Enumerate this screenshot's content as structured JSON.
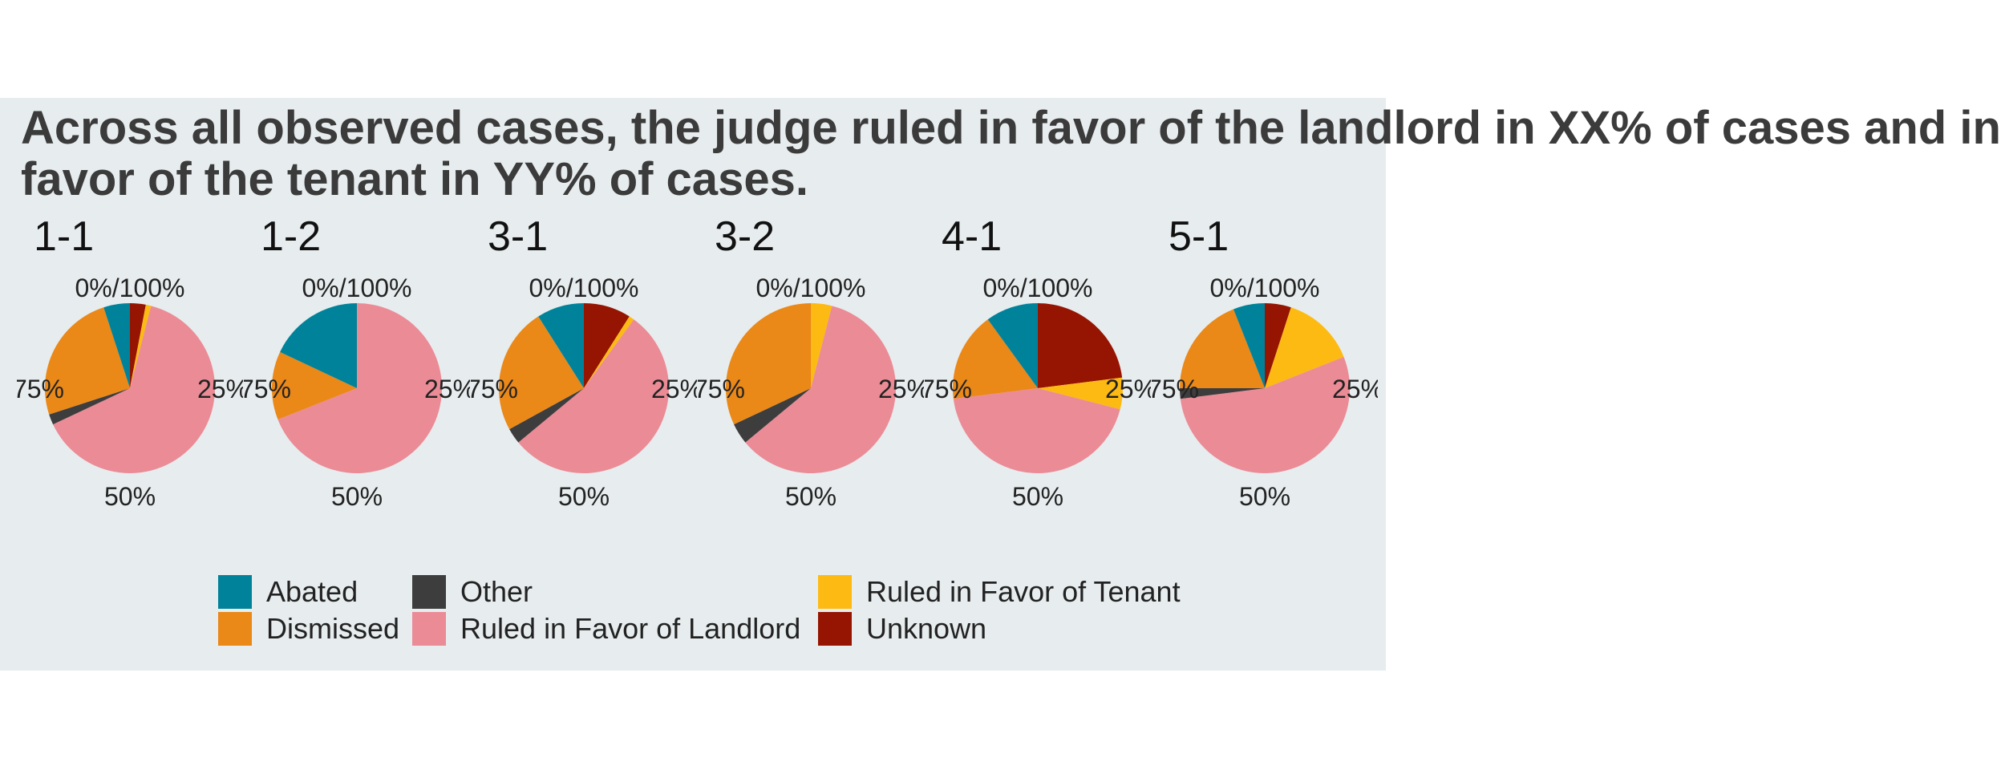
{
  "title_lines": [
    "Across all observed cases, the judge ruled in favor of the landlord in XX% of cases and in",
    "favor of the tenant in YY% of cases."
  ],
  "colors": {
    "Abated": "#00839a",
    "Other": "#3d3d3d",
    "Ruled in Favor of Tenant": "#fdba12",
    "Dismissed": "#ea8818",
    "Ruled in Favor of Landlord": "#eb8b96",
    "Unknown": "#961502",
    "panel_background": "#e7ecee"
  },
  "legend": {
    "items": [
      "Abated",
      "Dismissed",
      "Other",
      "Ruled in Favor of Landlord",
      "Ruled in Favor of Tenant",
      "Unknown"
    ]
  },
  "chart_data": [
    {
      "type": "pie",
      "title": "1-1",
      "tick_labels": [
        "0%/100%",
        "25%",
        "50%",
        "75%"
      ],
      "categories": [
        "Unknown",
        "Ruled in Favor of Tenant",
        "Ruled in Favor of Landlord",
        "Other",
        "Dismissed",
        "Abated"
      ],
      "values": [
        0.03,
        0.01,
        0.64,
        0.02,
        0.25,
        0.05
      ]
    },
    {
      "type": "pie",
      "title": "1-2",
      "tick_labels": [
        "0%/100%",
        "25%",
        "50%",
        "75%"
      ],
      "categories": [
        "Unknown",
        "Ruled in Favor of Tenant",
        "Ruled in Favor of Landlord",
        "Other",
        "Dismissed",
        "Abated"
      ],
      "values": [
        0.0,
        0.0,
        0.69,
        0.0,
        0.13,
        0.18
      ]
    },
    {
      "type": "pie",
      "title": "3-1",
      "tick_labels": [
        "0%/100%",
        "25%",
        "50%",
        "75%"
      ],
      "categories": [
        "Unknown",
        "Ruled in Favor of Tenant",
        "Ruled in Favor of Landlord",
        "Other",
        "Dismissed",
        "Abated"
      ],
      "values": [
        0.09,
        0.01,
        0.54,
        0.03,
        0.24,
        0.09
      ]
    },
    {
      "type": "pie",
      "title": "3-2",
      "tick_labels": [
        "0%/100%",
        "25%",
        "50%",
        "75%"
      ],
      "categories": [
        "Unknown",
        "Ruled in Favor of Tenant",
        "Ruled in Favor of Landlord",
        "Other",
        "Dismissed",
        "Abated"
      ],
      "values": [
        0.0,
        0.04,
        0.6,
        0.04,
        0.32,
        0.0
      ]
    },
    {
      "type": "pie",
      "title": "4-1",
      "tick_labels": [
        "0%/100%",
        "25%",
        "50%",
        "75%"
      ],
      "categories": [
        "Unknown",
        "Ruled in Favor of Tenant",
        "Ruled in Favor of Landlord",
        "Other",
        "Dismissed",
        "Abated"
      ],
      "values": [
        0.23,
        0.06,
        0.44,
        0.0,
        0.17,
        0.1
      ]
    },
    {
      "type": "pie",
      "title": "5-1",
      "tick_labels": [
        "0%/100%",
        "25%",
        "50%",
        "75%"
      ],
      "categories": [
        "Unknown",
        "Ruled in Favor of Tenant",
        "Ruled in Favor of Landlord",
        "Other",
        "Dismissed",
        "Abated"
      ],
      "values": [
        0.05,
        0.14,
        0.54,
        0.02,
        0.19,
        0.06
      ]
    }
  ]
}
